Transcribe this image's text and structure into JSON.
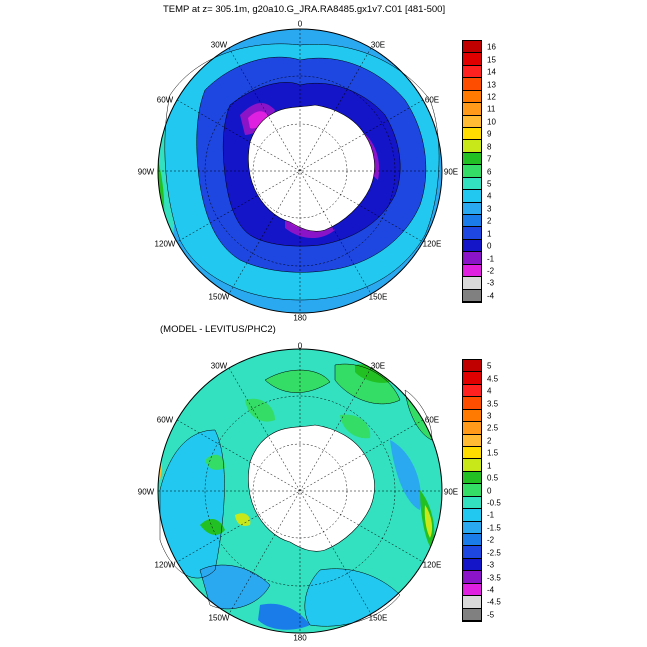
{
  "top": {
    "title": "TEMP at z= 305.1m, g20a10.G_JRA.RA8485.gx1v7.C01 [481-500]",
    "longitude_labels": [
      "0",
      "30E",
      "60E",
      "90E",
      "120E",
      "150E",
      "180",
      "150W",
      "120W",
      "90W",
      "60W",
      "30W"
    ],
    "colorbar": {
      "labels": [
        "16",
        "15",
        "14",
        "13",
        "12",
        "11",
        "10",
        "9",
        "8",
        "7",
        "6",
        "5",
        "4",
        "3",
        "2",
        "1",
        "0",
        "-1",
        "-2",
        "-3",
        "-4"
      ],
      "colors": [
        "#c00000",
        "#e00000",
        "#ff2020",
        "#ff4d00",
        "#ff7a00",
        "#ff9a1a",
        "#ffbb33",
        "#ffdd00",
        "#c8e81a",
        "#22c022",
        "#33dd66",
        "#33e0c0",
        "#22c8f0",
        "#2aa8f0",
        "#1a7ce8",
        "#1e46e0",
        "#1414c8",
        "#8c14c8",
        "#e020e0",
        "#d9d9d9",
        "#808080"
      ]
    }
  },
  "bottom": {
    "title": "(MODEL - LEVITUS/PHC2)",
    "longitude_labels": [
      "0",
      "30E",
      "60E",
      "90E",
      "120E",
      "150E",
      "180",
      "150W",
      "120W",
      "90W",
      "60W",
      "30W"
    ],
    "colorbar": {
      "labels": [
        "5",
        "4.5",
        "4",
        "3.5",
        "3",
        "2.5",
        "2",
        "1.5",
        "1",
        "0.5",
        "0",
        "-0.5",
        "-1",
        "-1.5",
        "-2",
        "-2.5",
        "-3",
        "-3.5",
        "-4",
        "-4.5",
        "-5"
      ],
      "colors": [
        "#c00000",
        "#e00000",
        "#ff2020",
        "#ff4d00",
        "#ff7a00",
        "#ff9a1a",
        "#ffbb33",
        "#ffdd00",
        "#c8e81a",
        "#22c022",
        "#33dd66",
        "#33e0c0",
        "#22c8f0",
        "#2aa8f0",
        "#1a7ce8",
        "#1e46e0",
        "#1414c8",
        "#8c14c8",
        "#e020e0",
        "#d9d9d9",
        "#808080"
      ]
    }
  }
}
